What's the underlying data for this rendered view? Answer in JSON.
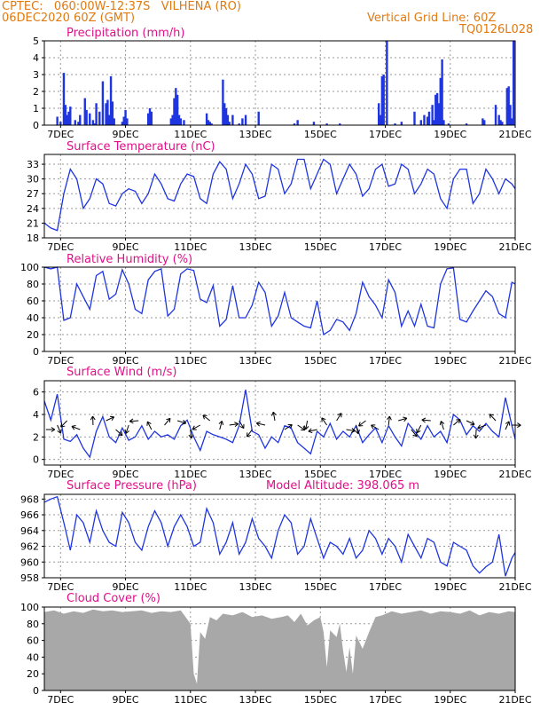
{
  "header": {
    "line1": "CPTEC:   060:00W-12:37S   VILHENA (RO)",
    "line2": "06DEC2020 60Z (GMT)",
    "right1": "Vertical Grid Line: 60Z",
    "right2": "TQ0126L028"
  },
  "colors": {
    "header": "#e07a10",
    "title": "#e0108a",
    "series": "#1f35e0",
    "cloud": "#a8a8a8",
    "grid": "#9a9a9a"
  },
  "x_axis": {
    "range": [
      6.5,
      21.0
    ],
    "ticks": [
      {
        "day": 7,
        "label": "7DEC"
      },
      {
        "day": 9,
        "label": "9DEC"
      },
      {
        "day": 11,
        "label": "11DEC"
      },
      {
        "day": 13,
        "label": "13DEC"
      },
      {
        "day": 15,
        "label": "15DEC"
      },
      {
        "day": 17,
        "label": "17DEC"
      },
      {
        "day": 19,
        "label": "19DEC"
      },
      {
        "day": 21,
        "label": "21DEC"
      }
    ]
  },
  "chart_data": [
    {
      "id": "precip",
      "type": "bar",
      "title": "Precipitation (mm/h)",
      "ylim": [
        0,
        5
      ],
      "yticks": [
        0,
        1,
        2,
        3,
        4,
        5
      ],
      "grid": true,
      "x": [
        6.9,
        7.0,
        7.1,
        7.15,
        7.2,
        7.25,
        7.3,
        7.45,
        7.55,
        7.6,
        7.75,
        7.8,
        7.9,
        8.0,
        8.05,
        8.1,
        8.2,
        8.3,
        8.4,
        8.45,
        8.5,
        8.55,
        8.6,
        8.65,
        8.9,
        8.95,
        9.0,
        9.05,
        9.7,
        9.75,
        9.8,
        10.4,
        10.45,
        10.5,
        10.55,
        10.6,
        10.65,
        10.7,
        10.8,
        11.5,
        11.55,
        11.6,
        11.65,
        12.0,
        12.05,
        12.1,
        12.15,
        12.2,
        12.3,
        12.5,
        12.6,
        12.7,
        13.1,
        14.2,
        14.3,
        14.8,
        15.2,
        15.6,
        16.8,
        16.85,
        16.9,
        16.95,
        17.05,
        17.3,
        17.5,
        17.9,
        18.1,
        18.2,
        18.3,
        18.35,
        18.45,
        18.5,
        18.55,
        18.6,
        18.65,
        18.7,
        18.75,
        18.8,
        18.95,
        19.5,
        20.0,
        20.05,
        20.4,
        20.5,
        20.55,
        20.6,
        20.75,
        20.8,
        20.85,
        20.9,
        20.95
      ],
      "values": [
        0.5,
        0.2,
        3.1,
        1.2,
        0.6,
        0.8,
        1.1,
        0.3,
        0.2,
        0.6,
        1.6,
        0.9,
        0.7,
        0.3,
        0.1,
        1.3,
        0.8,
        2.6,
        1.3,
        1.5,
        0.6,
        2.9,
        1.4,
        0.4,
        0.2,
        0.5,
        0.9,
        0.4,
        0.7,
        1.0,
        0.8,
        0.4,
        0.6,
        1.6,
        2.2,
        1.8,
        0.6,
        0.4,
        0.3,
        0.7,
        0.3,
        0.2,
        0.1,
        2.7,
        1.3,
        1.0,
        0.6,
        0.2,
        0.6,
        0.1,
        0.4,
        0.6,
        0.8,
        0.1,
        0.3,
        0.2,
        0.1,
        0.1,
        1.3,
        0.6,
        2.9,
        3.0,
        5.0,
        0.1,
        0.2,
        0.8,
        0.3,
        0.6,
        0.5,
        0.8,
        1.2,
        0.3,
        1.8,
        1.9,
        1.3,
        2.8,
        3.9,
        0.3,
        0.1,
        0.1,
        0.4,
        0.3,
        1.2,
        0.6,
        0.3,
        0.2,
        2.2,
        2.3,
        1.2,
        0.4,
        5.0
      ]
    },
    {
      "id": "temp",
      "type": "line",
      "title": "Surface Temperature (nC)",
      "ylim": [
        18,
        35
      ],
      "yticks": [
        18,
        21,
        24,
        27,
        30,
        33
      ],
      "grid": true,
      "x": [
        6.5,
        6.7,
        6.9,
        7.1,
        7.3,
        7.5,
        7.7,
        7.9,
        8.1,
        8.3,
        8.5,
        8.7,
        8.9,
        9.1,
        9.3,
        9.5,
        9.7,
        9.9,
        10.1,
        10.3,
        10.5,
        10.7,
        10.9,
        11.1,
        11.3,
        11.5,
        11.7,
        11.9,
        12.1,
        12.3,
        12.5,
        12.7,
        12.9,
        13.1,
        13.3,
        13.5,
        13.7,
        13.9,
        14.1,
        14.3,
        14.5,
        14.7,
        14.9,
        15.1,
        15.3,
        15.5,
        15.7,
        15.9,
        16.1,
        16.3,
        16.5,
        16.7,
        16.9,
        17.1,
        17.3,
        17.5,
        17.7,
        17.9,
        18.1,
        18.3,
        18.5,
        18.7,
        18.9,
        19.1,
        19.3,
        19.5,
        19.7,
        19.9,
        20.1,
        20.3,
        20.5,
        20.7,
        20.9,
        21.0
      ],
      "values": [
        21,
        20,
        19.5,
        27,
        32,
        30,
        24,
        26,
        30,
        29,
        25,
        24.5,
        27,
        28,
        27.5,
        25,
        27,
        31,
        29,
        26,
        25.5,
        29,
        31,
        30.5,
        26,
        25,
        31,
        33.5,
        32,
        26,
        29,
        33,
        31,
        26,
        26.5,
        33,
        32,
        27,
        29,
        34,
        34,
        28,
        31,
        34,
        33,
        27,
        30,
        33,
        31,
        26.5,
        28,
        32,
        33,
        28.5,
        29,
        33,
        32,
        27,
        29,
        32,
        31,
        26,
        24,
        30,
        32,
        32,
        25,
        27,
        32,
        30,
        27,
        30,
        29,
        28
      ]
    },
    {
      "id": "rh",
      "type": "line",
      "title": "Relative Humidity (%)",
      "ylim": [
        0,
        100
      ],
      "yticks": [
        0,
        20,
        40,
        60,
        80,
        100
      ],
      "grid": true,
      "x": [
        6.5,
        6.7,
        6.9,
        7.1,
        7.3,
        7.5,
        7.7,
        7.9,
        8.1,
        8.3,
        8.5,
        8.7,
        8.9,
        9.1,
        9.3,
        9.5,
        9.7,
        9.9,
        10.1,
        10.3,
        10.5,
        10.7,
        10.9,
        11.1,
        11.3,
        11.5,
        11.7,
        11.9,
        12.1,
        12.3,
        12.5,
        12.7,
        12.9,
        13.1,
        13.3,
        13.5,
        13.7,
        13.9,
        14.1,
        14.3,
        14.5,
        14.7,
        14.9,
        15.1,
        15.3,
        15.5,
        15.7,
        15.9,
        16.1,
        16.3,
        16.5,
        16.7,
        16.9,
        17.1,
        17.3,
        17.5,
        17.7,
        17.9,
        18.1,
        18.3,
        18.5,
        18.7,
        18.9,
        19.1,
        19.3,
        19.5,
        19.7,
        19.9,
        20.1,
        20.3,
        20.5,
        20.7,
        20.9,
        21.0
      ],
      "values": [
        100,
        98,
        100,
        37,
        40,
        80,
        65,
        50,
        90,
        95,
        62,
        68,
        97,
        80,
        50,
        45,
        85,
        95,
        98,
        42,
        50,
        92,
        98,
        96,
        62,
        58,
        78,
        30,
        38,
        78,
        40,
        40,
        55,
        82,
        70,
        30,
        42,
        70,
        40,
        35,
        30,
        28,
        60,
        20,
        25,
        38,
        35,
        25,
        45,
        82,
        65,
        55,
        40,
        85,
        70,
        30,
        48,
        30,
        56,
        30,
        28,
        80,
        98,
        99,
        38,
        35,
        48,
        60,
        72,
        65,
        45,
        40,
        82,
        80
      ]
    },
    {
      "id": "wind",
      "type": "line",
      "title": "Surface Wind (m/s)",
      "ylim": [
        -0.5,
        7
      ],
      "yticks": [
        0,
        2,
        4,
        6
      ],
      "grid": true,
      "x": [
        6.5,
        6.7,
        6.9,
        7.1,
        7.3,
        7.5,
        7.7,
        7.9,
        8.1,
        8.3,
        8.5,
        8.7,
        8.9,
        9.1,
        9.3,
        9.5,
        9.7,
        9.9,
        10.1,
        10.3,
        10.5,
        10.7,
        10.9,
        11.1,
        11.3,
        11.5,
        11.7,
        11.9,
        12.1,
        12.3,
        12.5,
        12.7,
        12.9,
        13.1,
        13.3,
        13.5,
        13.7,
        13.9,
        14.1,
        14.3,
        14.5,
        14.7,
        14.9,
        15.1,
        15.3,
        15.5,
        15.7,
        15.9,
        16.1,
        16.3,
        16.5,
        16.7,
        16.9,
        17.1,
        17.3,
        17.5,
        17.7,
        17.9,
        18.1,
        18.3,
        18.5,
        18.7,
        18.9,
        19.1,
        19.3,
        19.5,
        19.7,
        19.9,
        20.1,
        20.3,
        20.5,
        20.7,
        20.9,
        21.0
      ],
      "values": [
        5.2,
        3.5,
        5.8,
        1.8,
        1.6,
        2.2,
        1.0,
        0.2,
        2.5,
        3.8,
        2.0,
        1.5,
        2.8,
        1.7,
        2.0,
        3.0,
        1.8,
        2.5,
        2.0,
        2.2,
        1.8,
        3.0,
        3.5,
        2.0,
        0.8,
        2.5,
        2.2,
        2.0,
        1.8,
        1.5,
        3.0,
        6.2,
        2.5,
        2.2,
        1.0,
        2.0,
        1.5,
        3.0,
        2.8,
        1.5,
        1.0,
        0.5,
        2.5,
        2.0,
        3.2,
        1.8,
        2.5,
        2.0,
        3.0,
        1.5,
        2.2,
        2.8,
        1.5,
        3.0,
        2.0,
        1.2,
        3.2,
        2.5,
        1.8,
        3.0,
        2.0,
        2.5,
        1.5,
        4.0,
        3.5,
        2.2,
        3.0,
        2.5,
        3.2,
        2.5,
        2.0,
        5.5,
        3.0,
        1.8
      ],
      "vector_days": [
        6.55,
        6.9,
        7.2,
        7.6,
        8.0,
        8.4,
        8.7,
        9.1,
        9.4,
        9.8,
        10.2,
        10.6,
        11.0,
        11.3,
        11.6,
        11.9,
        12.2,
        12.5,
        12.9,
        13.3,
        13.6,
        13.9,
        14.3,
        14.6,
        14.9,
        15.2,
        15.5,
        15.8,
        16.1,
        16.4,
        16.8,
        17.1,
        17.4,
        17.8,
        18.1,
        18.4,
        18.8,
        19.1,
        19.5,
        19.8,
        20.1,
        20.4,
        20.7,
        20.9
      ]
    },
    {
      "id": "psfc",
      "type": "line",
      "title": "Surface Pressure (hPa)",
      "annotation": "Model Altitude: 398.065 m",
      "ylim": [
        958,
        968.6
      ],
      "yticks": [
        958,
        960,
        962,
        964,
        966,
        968
      ],
      "grid": true,
      "x": [
        6.5,
        6.7,
        6.9,
        7.1,
        7.3,
        7.5,
        7.7,
        7.9,
        8.1,
        8.3,
        8.5,
        8.7,
        8.9,
        9.1,
        9.3,
        9.5,
        9.7,
        9.9,
        10.1,
        10.3,
        10.5,
        10.7,
        10.9,
        11.1,
        11.3,
        11.5,
        11.7,
        11.9,
        12.1,
        12.3,
        12.5,
        12.7,
        12.9,
        13.1,
        13.3,
        13.5,
        13.7,
        13.9,
        14.1,
        14.3,
        14.5,
        14.7,
        14.9,
        15.1,
        15.3,
        15.5,
        15.7,
        15.9,
        16.1,
        16.3,
        16.5,
        16.7,
        16.9,
        17.1,
        17.3,
        17.5,
        17.7,
        17.9,
        18.1,
        18.3,
        18.5,
        18.7,
        18.9,
        19.1,
        19.3,
        19.5,
        19.7,
        19.9,
        20.1,
        20.3,
        20.5,
        20.7,
        20.9,
        21.0
      ],
      "values": [
        967.6,
        968.0,
        968.3,
        965,
        961.5,
        966,
        965,
        962.5,
        966.5,
        964,
        962.5,
        962,
        966.3,
        965,
        962.5,
        961.5,
        964.5,
        966.5,
        965,
        962,
        964.5,
        966,
        964.5,
        962,
        962.5,
        966.8,
        965,
        961,
        962.5,
        965,
        961,
        962.5,
        965.5,
        963,
        962,
        960.5,
        964,
        966,
        965,
        961,
        962,
        965.5,
        963,
        960.5,
        962.5,
        962,
        961,
        963,
        960.5,
        961.5,
        964,
        963,
        961,
        963,
        962,
        960,
        963.5,
        962,
        960.5,
        963,
        962.5,
        960,
        959.5,
        962.5,
        962,
        961.5,
        959.5,
        958.6,
        959.4,
        960,
        963.5,
        958.2,
        960.5,
        961.2
      ]
    },
    {
      "id": "cloud",
      "type": "area",
      "title": "Cloud Cover (%)",
      "ylim": [
        0,
        100
      ],
      "yticks": [
        0,
        20,
        40,
        60,
        80,
        100
      ],
      "grid": true,
      "x": [
        6.5,
        6.8,
        7.1,
        7.4,
        7.7,
        8.0,
        8.3,
        8.6,
        8.9,
        9.2,
        9.5,
        9.8,
        10.1,
        10.4,
        10.7,
        11.0,
        11.1,
        11.2,
        11.3,
        11.45,
        11.6,
        11.8,
        12.0,
        12.3,
        12.6,
        12.9,
        13.2,
        13.5,
        13.8,
        14.0,
        14.2,
        14.4,
        14.6,
        14.8,
        15.0,
        15.1,
        15.2,
        15.3,
        15.5,
        15.6,
        15.7,
        15.8,
        15.9,
        16.0,
        16.1,
        16.3,
        16.5,
        16.7,
        16.9,
        17.2,
        17.5,
        17.8,
        18.1,
        18.4,
        18.7,
        19.0,
        19.3,
        19.6,
        19.9,
        20.2,
        20.5,
        20.8,
        21.0
      ],
      "values": [
        94,
        96,
        92,
        95,
        93,
        97,
        95,
        96,
        94,
        95,
        96,
        93,
        95,
        94,
        96,
        80,
        20,
        8,
        70,
        62,
        88,
        84,
        92,
        90,
        94,
        88,
        90,
        86,
        88,
        90,
        82,
        92,
        78,
        84,
        88,
        70,
        28,
        72,
        64,
        80,
        48,
        22,
        52,
        20,
        66,
        50,
        70,
        88,
        90,
        95,
        92,
        94,
        96,
        92,
        95,
        94,
        92,
        96,
        90,
        94,
        92,
        95,
        94
      ]
    }
  ]
}
